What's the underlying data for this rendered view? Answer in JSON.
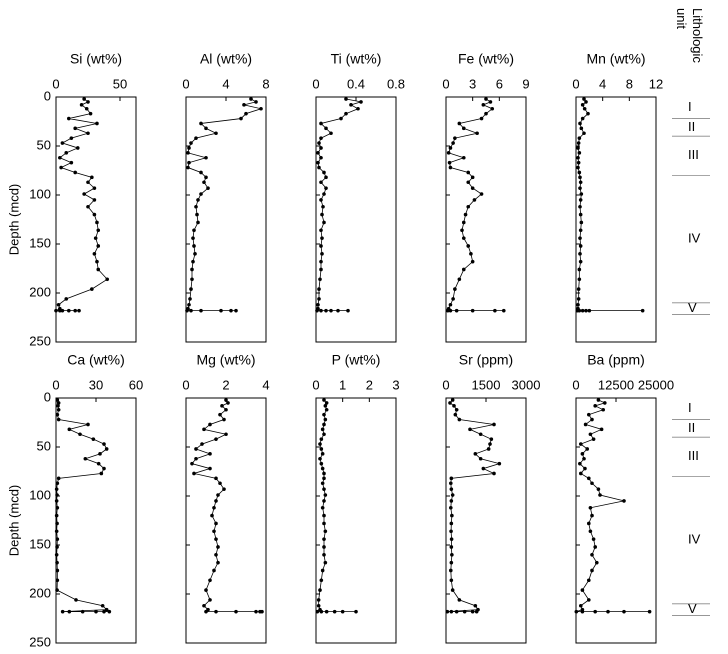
{
  "depth_axis": {
    "label": "Depth (mcd)",
    "lim": [
      0,
      250
    ],
    "ticks": [
      0,
      50,
      100,
      150,
      200,
      250
    ],
    "inverted": true
  },
  "unit_header": [
    "Lithologic",
    "unit"
  ],
  "units": [
    {
      "label": "I",
      "top": 0,
      "bottom": 22
    },
    {
      "label": "II",
      "top": 22,
      "bottom": 40
    },
    {
      "label": "III",
      "top": 40,
      "bottom": 80
    },
    {
      "label": "IV",
      "top": 80,
      "bottom": 210
    },
    {
      "label": "V",
      "top": 210,
      "bottom": 222
    }
  ],
  "chart_data": [
    {
      "type": "line",
      "title": "Si (wt%)",
      "xlim": [
        0,
        62.5
      ],
      "xticks": [
        0,
        50
      ],
      "color": "#000000",
      "depth": [
        2,
        5,
        8,
        12,
        17,
        22,
        27,
        32,
        37,
        42,
        47,
        52,
        57,
        62,
        67,
        72,
        77,
        82,
        87,
        93,
        99,
        105,
        112,
        120,
        128,
        136,
        144,
        152,
        160,
        168,
        176,
        186,
        196,
        206,
        212,
        216,
        218,
        218,
        218,
        218,
        218,
        218
      ],
      "values": [
        22,
        25,
        20,
        24,
        27,
        10,
        32,
        15,
        25,
        12,
        5,
        17,
        8,
        3,
        12,
        4,
        15,
        28,
        25,
        30,
        22,
        30,
        25,
        30,
        32,
        33,
        31,
        33,
        30,
        32,
        33,
        40,
        28,
        8,
        2,
        3,
        0,
        3,
        5,
        10,
        15,
        18
      ]
    },
    {
      "type": "line",
      "title": "Al (wt%)",
      "xlim": [
        0,
        8
      ],
      "xticks": [
        0,
        4,
        8
      ],
      "color": "#000000",
      "depth": [
        2,
        5,
        8,
        12,
        17,
        22,
        27,
        32,
        37,
        42,
        47,
        52,
        57,
        62,
        67,
        72,
        77,
        82,
        87,
        93,
        99,
        105,
        112,
        120,
        128,
        136,
        144,
        152,
        160,
        168,
        176,
        186,
        196,
        206,
        212,
        216,
        218,
        218,
        218,
        218,
        218,
        218
      ],
      "values": [
        6.5,
        7,
        5.8,
        7.5,
        6,
        5.5,
        1.5,
        2,
        3,
        1,
        0.5,
        0.3,
        0.2,
        2,
        0.3,
        0.2,
        1.5,
        2,
        1.8,
        2.2,
        1.5,
        1.2,
        1.0,
        1.1,
        1.2,
        0.8,
        0.7,
        0.8,
        0.9,
        0.7,
        0.6,
        0.6,
        0.5,
        0.4,
        0.3,
        0.2,
        0.1,
        0.5,
        1.5,
        3.5,
        4.5,
        5
      ]
    },
    {
      "type": "line",
      "title": "Ti (wt%)",
      "xlim": [
        0,
        0.8
      ],
      "xticks": [
        0,
        0.4,
        0.8
      ],
      "color": "#000000",
      "depth": [
        2,
        5,
        8,
        12,
        17,
        22,
        27,
        32,
        37,
        42,
        47,
        52,
        57,
        62,
        67,
        72,
        77,
        82,
        87,
        93,
        99,
        105,
        112,
        120,
        128,
        136,
        144,
        152,
        160,
        168,
        176,
        186,
        196,
        206,
        212,
        216,
        218,
        218,
        218,
        218,
        218,
        218
      ],
      "values": [
        0.3,
        0.45,
        0.35,
        0.42,
        0.3,
        0.25,
        0.05,
        0.1,
        0.15,
        0.05,
        0.03,
        0.05,
        0.02,
        0.05,
        0.02,
        0.03,
        0.08,
        0.1,
        0.05,
        0.1,
        0.08,
        0.05,
        0.07,
        0.06,
        0.08,
        0.05,
        0.06,
        0.05,
        0.06,
        0.05,
        0.05,
        0.04,
        0.03,
        0.03,
        0.02,
        0.02,
        0.01,
        0.05,
        0.1,
        0.15,
        0.22,
        0.32
      ]
    },
    {
      "type": "line",
      "title": "Fe (wt%)",
      "xlim": [
        0,
        9
      ],
      "xticks": [
        0,
        3,
        6,
        9
      ],
      "color": "#000000",
      "depth": [
        2,
        5,
        8,
        12,
        17,
        22,
        27,
        32,
        37,
        42,
        47,
        52,
        57,
        62,
        67,
        72,
        77,
        82,
        87,
        93,
        99,
        105,
        112,
        120,
        128,
        136,
        144,
        152,
        160,
        168,
        176,
        186,
        196,
        206,
        212,
        216,
        218,
        218,
        218,
        218,
        218,
        218
      ],
      "values": [
        4.5,
        5,
        4.2,
        5.2,
        4.5,
        4,
        1.5,
        2,
        3.5,
        1,
        0.8,
        0.5,
        0.3,
        2,
        0.4,
        0.5,
        2.5,
        3,
        2.5,
        3,
        4,
        3.2,
        2.5,
        2.2,
        2,
        1.8,
        2,
        2.5,
        2.8,
        3,
        2,
        1.5,
        1,
        0.8,
        0.5,
        0.3,
        0.2,
        0.5,
        1.2,
        3,
        5.5,
        6.5
      ]
    },
    {
      "type": "line",
      "title": "Mn (wt%)",
      "xlim": [
        0,
        12
      ],
      "xticks": [
        0,
        4,
        8,
        12
      ],
      "color": "#000000",
      "depth": [
        2,
        5,
        8,
        12,
        17,
        22,
        27,
        32,
        37,
        42,
        47,
        52,
        57,
        62,
        67,
        72,
        77,
        82,
        87,
        93,
        99,
        105,
        112,
        120,
        128,
        136,
        144,
        152,
        160,
        168,
        176,
        186,
        196,
        206,
        212,
        216,
        218,
        218,
        218,
        218,
        218,
        218
      ],
      "values": [
        1.2,
        1.5,
        1.0,
        1.3,
        1.8,
        1.0,
        0.6,
        0.8,
        1.2,
        0.5,
        0.4,
        0.3,
        0.5,
        0.3,
        0.4,
        0.3,
        0.5,
        0.6,
        0.7,
        0.6,
        0.8,
        0.7,
        0.6,
        0.7,
        0.8,
        0.7,
        0.6,
        0.7,
        0.6,
        0.7,
        0.5,
        0.5,
        0.4,
        0.4,
        0.3,
        0.3,
        0.2,
        0.5,
        1,
        1.5,
        2,
        10
      ]
    },
    {
      "type": "line",
      "title": "Ca (wt%)",
      "xlim": [
        0,
        60
      ],
      "xticks": [
        0,
        30,
        60
      ],
      "color": "#000000",
      "depth": [
        2,
        5,
        8,
        12,
        17,
        22,
        27,
        32,
        37,
        42,
        47,
        52,
        57,
        62,
        67,
        72,
        77,
        82,
        87,
        93,
        99,
        105,
        112,
        120,
        128,
        136,
        144,
        152,
        160,
        168,
        176,
        186,
        196,
        206,
        212,
        216,
        218,
        218,
        218,
        218,
        218,
        218
      ],
      "values": [
        1,
        2,
        1.5,
        2,
        1,
        2,
        24,
        10,
        18,
        28,
        36,
        38,
        33,
        22,
        32,
        36,
        34,
        2,
        1,
        0.5,
        0.8,
        0.5,
        1,
        0.5,
        0.8,
        0.5,
        1,
        0.8,
        0.5,
        0.8,
        1,
        1,
        0.8,
        15,
        35,
        38,
        5,
        10,
        20,
        30,
        36,
        40
      ]
    },
    {
      "type": "line",
      "title": "Mg (wt%)",
      "xlim": [
        0,
        4
      ],
      "xticks": [
        0,
        2,
        4
      ],
      "color": "#000000",
      "depth": [
        2,
        5,
        8,
        12,
        17,
        22,
        27,
        32,
        37,
        42,
        47,
        52,
        57,
        62,
        67,
        72,
        77,
        82,
        87,
        93,
        99,
        105,
        112,
        120,
        128,
        136,
        144,
        152,
        160,
        168,
        176,
        186,
        196,
        206,
        212,
        216,
        218,
        218,
        218,
        218,
        218,
        218
      ],
      "values": [
        2,
        2.1,
        1.8,
        2,
        1.7,
        1.9,
        1.2,
        0.9,
        2,
        1.5,
        0.8,
        0.5,
        1.2,
        0.5,
        0.3,
        1.2,
        0.4,
        1.5,
        1.7,
        1.9,
        1.6,
        1.5,
        1.4,
        1.3,
        1.5,
        1.4,
        1.5,
        1.6,
        1.5,
        1.6,
        1.4,
        1.2,
        1.0,
        1.2,
        0.9,
        1.1,
        1.0,
        1.5,
        2.5,
        3.5,
        3.7,
        3.8
      ]
    },
    {
      "type": "line",
      "title": "P (wt%)",
      "xlim": [
        0,
        3
      ],
      "xticks": [
        0,
        1,
        2,
        3
      ],
      "color": "#000000",
      "depth": [
        2,
        5,
        8,
        12,
        17,
        22,
        27,
        32,
        37,
        42,
        47,
        52,
        57,
        62,
        67,
        72,
        77,
        82,
        87,
        93,
        99,
        105,
        112,
        120,
        128,
        136,
        144,
        152,
        160,
        168,
        176,
        186,
        196,
        206,
        212,
        216,
        218,
        218,
        218,
        218,
        218,
        218
      ],
      "values": [
        0.3,
        0.4,
        0.35,
        0.4,
        0.3,
        0.35,
        0.3,
        0.25,
        0.3,
        0.2,
        0.15,
        0.2,
        0.25,
        0.15,
        0.2,
        0.25,
        0.3,
        0.3,
        0.25,
        0.3,
        0.35,
        0.3,
        0.25,
        0.3,
        0.3,
        0.35,
        0.3,
        0.3,
        0.3,
        0.35,
        0.25,
        0.2,
        0.15,
        0.1,
        0.1,
        0.15,
        0.05,
        0.2,
        0.4,
        0.7,
        1.0,
        1.5
      ]
    },
    {
      "type": "line",
      "title": "Sr (ppm)",
      "xlim": [
        0,
        3000
      ],
      "xticks": [
        0,
        1500,
        3000
      ],
      "color": "#000000",
      "depth": [
        2,
        5,
        8,
        12,
        17,
        22,
        27,
        32,
        37,
        42,
        47,
        52,
        57,
        62,
        67,
        72,
        77,
        82,
        87,
        93,
        99,
        105,
        112,
        120,
        128,
        136,
        144,
        152,
        160,
        168,
        176,
        186,
        196,
        206,
        212,
        216,
        218,
        218,
        218,
        218,
        218,
        218
      ],
      "values": [
        250,
        150,
        300,
        400,
        350,
        500,
        1800,
        900,
        1300,
        1700,
        1650,
        1600,
        1100,
        1300,
        2000,
        1400,
        1800,
        200,
        180,
        200,
        250,
        200,
        180,
        220,
        200,
        190,
        210,
        200,
        220,
        200,
        180,
        200,
        250,
        500,
        1100,
        1200,
        50,
        200,
        400,
        700,
        1000,
        1150
      ]
    },
    {
      "type": "line",
      "title": "Ba (ppm)",
      "xlim": [
        0,
        25000
      ],
      "xticks": [
        0,
        12500,
        25000
      ],
      "color": "#000000",
      "depth": [
        2,
        5,
        8,
        12,
        17,
        22,
        27,
        32,
        37,
        42,
        47,
        52,
        57,
        62,
        67,
        72,
        77,
        82,
        87,
        93,
        99,
        105,
        112,
        120,
        128,
        136,
        144,
        152,
        160,
        168,
        176,
        186,
        196,
        206,
        212,
        216,
        218,
        218,
        218,
        218,
        218,
        218
      ],
      "values": [
        7000,
        9000,
        6000,
        8500,
        4000,
        5000,
        3000,
        8000,
        4500,
        5500,
        1500,
        3500,
        2000,
        2500,
        1200,
        2800,
        1500,
        4000,
        5000,
        7000,
        7500,
        15000,
        4500,
        5000,
        4000,
        4500,
        5500,
        6000,
        5000,
        6500,
        5000,
        4000,
        2000,
        4000,
        1500,
        2000,
        100,
        2000,
        6000,
        10000,
        15000,
        23000
      ]
    }
  ]
}
